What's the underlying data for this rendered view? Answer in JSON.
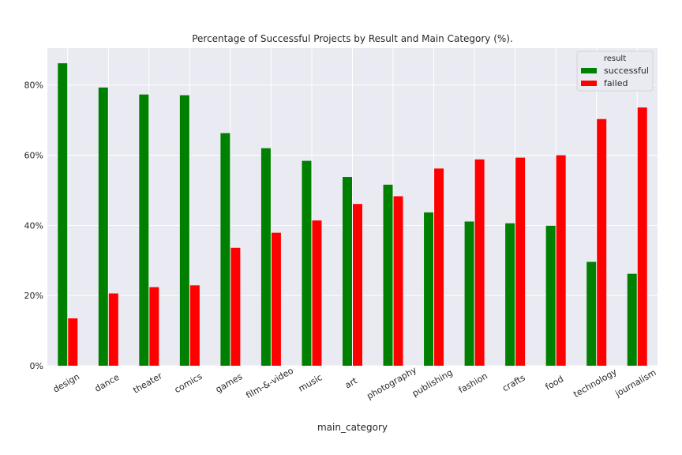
{
  "chart_data": {
    "type": "bar",
    "title": "Percentage of Successful Projects by Result and Main Category (%).",
    "xlabel": "main_category",
    "ylabel": "",
    "categories": [
      "design",
      "dance",
      "theater",
      "comics",
      "games",
      "film-&-video",
      "music",
      "art",
      "photography",
      "publishing",
      "fashion",
      "crafts",
      "food",
      "technology",
      "journalism"
    ],
    "series": [
      {
        "name": "successful",
        "color": "#008000",
        "values": [
          86.2,
          79.3,
          77.3,
          77.1,
          66.3,
          62.0,
          58.4,
          53.8,
          51.6,
          43.7,
          41.1,
          40.6,
          39.9,
          29.6,
          26.2
        ]
      },
      {
        "name": "failed",
        "color": "#ff0000",
        "values": [
          13.5,
          20.6,
          22.4,
          22.9,
          33.6,
          37.9,
          41.4,
          46.1,
          48.3,
          56.2,
          58.8,
          59.3,
          60.0,
          70.3,
          73.6
        ]
      }
    ],
    "ylim": [
      0,
      90.5
    ],
    "yticks": [
      0,
      20,
      40,
      60,
      80
    ],
    "ytick_labels": [
      "0%",
      "20%",
      "40%",
      "60%",
      "80%"
    ],
    "legend": {
      "title": "result",
      "placement": "top-right"
    },
    "grid": true,
    "background": "#eaeaf2"
  }
}
